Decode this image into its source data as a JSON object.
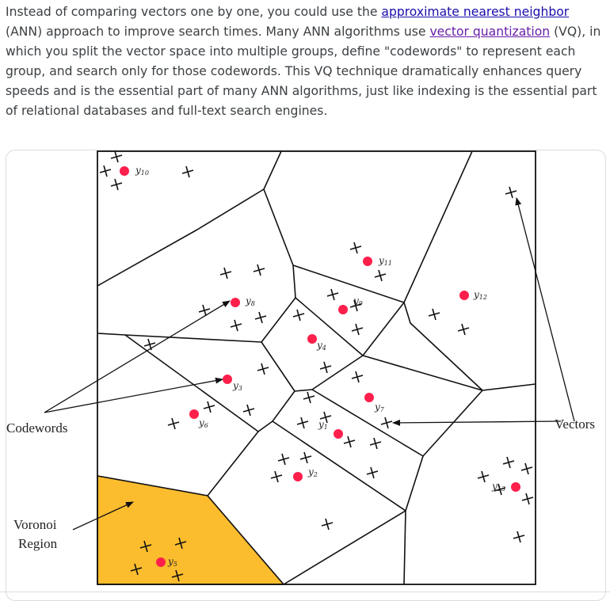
{
  "paragraph": {
    "text_1": "Instead of comparing vectors one by one, you could use the ",
    "link_1": "approximate nearest neighbor",
    "text_2": " (ANN) approach to improve search times. Many ANN algorithms use ",
    "link_2": "vector quantization",
    "text_3": " (VQ), in which you split the vector space into multiple groups, define \"codewords\" to represent each group, and search only for those codewords. This VQ technique dramatically enhances query speeds and is the essential part of many ANN algorithms, just like indexing is the essential part of relational databases and full-text search engines."
  },
  "diagram": {
    "labels": {
      "codewords": "Codewords",
      "vectors": "Vectors",
      "voronoi_line1": "Voronoi",
      "voronoi_line2": "Region"
    },
    "codewords": [
      {
        "name": "y",
        "sub": "10"
      },
      {
        "name": "y",
        "sub": "11"
      },
      {
        "name": "y",
        "sub": "12"
      },
      {
        "name": "y",
        "sub": "8"
      },
      {
        "name": "y",
        "sub": "9"
      },
      {
        "name": "y",
        "sub": "4"
      },
      {
        "name": "y",
        "sub": "3"
      },
      {
        "name": "y",
        "sub": "7"
      },
      {
        "name": "y",
        "sub": "6"
      },
      {
        "name": "y",
        "sub": "1"
      },
      {
        "name": "y",
        "sub": "2"
      },
      {
        "name": "y",
        "sub": "13"
      },
      {
        "name": "y",
        "sub": "5"
      }
    ],
    "colors": {
      "codeword_dot": "#ff1f4b",
      "voronoi_fill": "#fbbc2e",
      "lines": "#111111"
    }
  }
}
